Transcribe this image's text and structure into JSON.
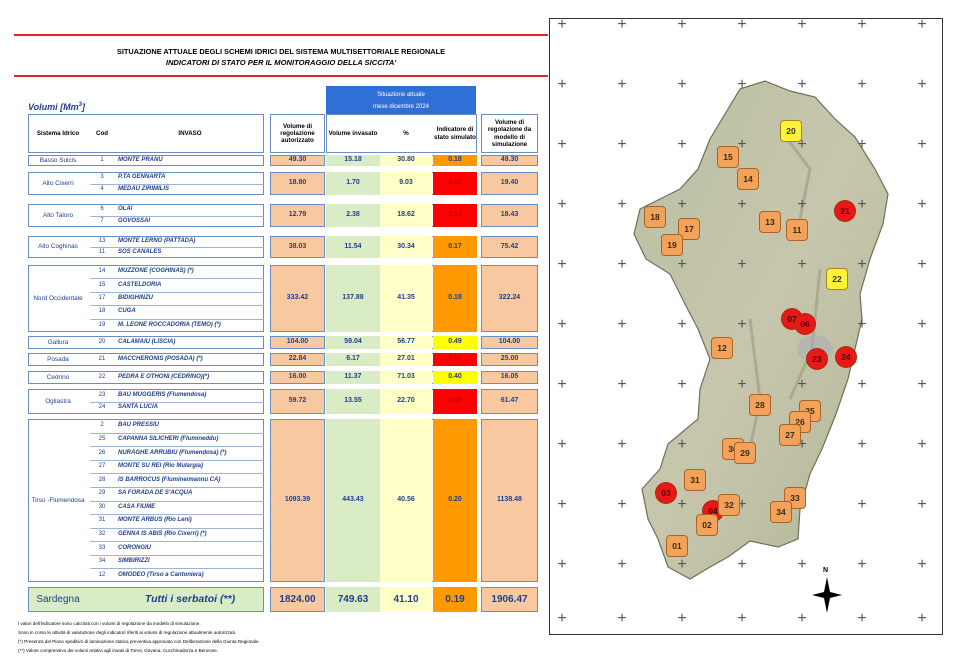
{
  "header": {
    "title_line1": "SITUAZIONE ATTUALE DEGLI SCHEMI IDRICI DEL SISTEMA MULTISETTORIALE REGIONALE",
    "title_line2": "INDICATORI DI STATO PER IL MONITORAGGIO DELLA SICCITA'",
    "volumi_label": "Volumi [Mm",
    "volumi_exp": "3",
    "volumi_close": "]"
  },
  "situazione": {
    "line1": "Situazione attuale",
    "line2": "mese dicembre 2024"
  },
  "columns": {
    "sistema": "Sistema Idrico",
    "cod": "Cod",
    "invaso": "INVASO",
    "vol_reg": "Volume di regolazione autorizzato",
    "vol_inv": "Volume invasato",
    "perc": "%",
    "indicatore": "Indicatore di stato simulato",
    "vol_sim": "Volume di regolazione da modello di simulazione"
  },
  "colors": {
    "green": "#d9ecc6",
    "orange_light": "#f8c9a0",
    "yellow_light": "#ffffc8",
    "red": "#ff0000",
    "orange": "#ff9900",
    "yellow": "#ffff00",
    "blue_header": "#2f6fd6"
  },
  "groups": [
    {
      "name": "Basso Sulcis",
      "rows": [
        {
          "cod": "1",
          "invaso": "MONTE PRANU"
        }
      ],
      "vol_reg": "49.30",
      "vol_inv": "15.18",
      "perc": "30.80",
      "ind": "0.18",
      "ind_color": "orange",
      "vol_sim": "49.30"
    },
    {
      "name": "Alto Cixerri",
      "rows": [
        {
          "cod": "3",
          "invaso": "P.TA GENNARTA"
        },
        {
          "cod": "4",
          "invaso": "MEDAU ZIRIMILIS"
        }
      ],
      "vol_reg": "18.80",
      "vol_inv": "1.70",
      "perc": "9.03",
      "ind": "0.01",
      "ind_color": "red",
      "vol_sim": "19.40"
    },
    {
      "name": "Alto Taloro",
      "rows": [
        {
          "cod": "6",
          "invaso": "OLAI"
        },
        {
          "cod": "7",
          "invaso": "GOVOSSAI"
        }
      ],
      "vol_reg": "12.79",
      "vol_inv": "2.38",
      "perc": "18.62",
      "ind": "0.13",
      "ind_color": "red",
      "vol_sim": "18.43"
    },
    {
      "name": "Alto Coghinas",
      "rows": [
        {
          "cod": "13",
          "invaso": "MONTE LERNO (PATTADA)"
        },
        {
          "cod": "11",
          "invaso": "SOS CANALES"
        }
      ],
      "vol_reg": "38.03",
      "vol_inv": "11.54",
      "perc": "30.34",
      "ind": "0.17",
      "ind_color": "orange",
      "vol_sim": "75.42"
    },
    {
      "name": "Nord Occidentale",
      "rows": [
        {
          "cod": "14",
          "invaso": "MUZZONE (COGHINAS) (*)"
        },
        {
          "cod": "15",
          "invaso": "CASTELDORIA"
        },
        {
          "cod": "17",
          "invaso": "BIDIGHINZU"
        },
        {
          "cod": "18",
          "invaso": "CUGA"
        },
        {
          "cod": "19",
          "invaso": "M. LEONE ROCCADORIA (TEMO) (*)"
        }
      ],
      "vol_reg": "333.42",
      "vol_inv": "137.88",
      "perc": "41.35",
      "ind": "0.18",
      "ind_color": "orange",
      "vol_sim": "322.24"
    },
    {
      "name": "Gallura",
      "rows": [
        {
          "cod": "20",
          "invaso": "CALAMAIU (LISCIA)"
        }
      ],
      "vol_reg": "104.00",
      "vol_inv": "59.04",
      "perc": "56.77",
      "ind": "0.49",
      "ind_color": "yellow",
      "vol_sim": "104.00"
    },
    {
      "name": "Posada",
      "rows": [
        {
          "cod": "21",
          "invaso": "MACCHERONIS (POSADA) (*)"
        }
      ],
      "vol_reg": "22.84",
      "vol_inv": "6.17",
      "perc": "27.01",
      "ind": "0.01",
      "ind_color": "red",
      "vol_sim": "25.00"
    },
    {
      "name": "Cedrino",
      "rows": [
        {
          "cod": "22",
          "invaso": "PEDRA E OTHONI (CEDRINO)(*)"
        }
      ],
      "vol_reg": "16.00",
      "vol_inv": "11.37",
      "perc": "71.03",
      "ind": "0.40",
      "ind_color": "yellow",
      "vol_sim": "16.05"
    },
    {
      "name": "Ogliastra",
      "rows": [
        {
          "cod": "23",
          "invaso": "BAU MUGGERIS (Flumendosa)"
        },
        {
          "cod": "24",
          "invaso": "SANTA LUCIA"
        }
      ],
      "vol_reg": "59.72",
      "vol_inv": "13.55",
      "perc": "22.70",
      "ind": "0.08",
      "ind_color": "red",
      "vol_sim": "61.47"
    },
    {
      "name": "Tirso -Flumendosa",
      "rows": [
        {
          "cod": "2",
          "invaso": "BAU PRESSIU"
        },
        {
          "cod": "25",
          "invaso": "CAPANNA SILICHERI (Flumineddu)"
        },
        {
          "cod": "26",
          "invaso": "NURAGHE ARRUBIU (Flumendosa) (*)"
        },
        {
          "cod": "27",
          "invaso": "MONTE SU REI (Rio Mulargia)"
        },
        {
          "cod": "28",
          "invaso": "IS BARROCUS (Flumineimannu CA)"
        },
        {
          "cod": "29",
          "invaso": "SA FORADA DE S'ACQUA"
        },
        {
          "cod": "30",
          "invaso": "CASA FIUME"
        },
        {
          "cod": "31",
          "invaso": "MONTE ARBUS (Rio Leni)"
        },
        {
          "cod": "32",
          "invaso": "GENNA IS ABIS (Rio Cixerri) (*)"
        },
        {
          "cod": "33",
          "invaso": "CORONGIU"
        },
        {
          "cod": "34",
          "invaso": "SIMBIRIZZI"
        },
        {
          "cod": "12",
          "invaso": "OMODEO (Tirso a Cantoniera)"
        }
      ],
      "vol_reg": "1093.39",
      "vol_inv": "443.43",
      "perc": "40.56",
      "ind": "0.20",
      "ind_color": "orange",
      "vol_sim": "1138.48"
    }
  ],
  "total": {
    "name": "Sardegna",
    "invaso": "Tutti i serbatoi (**)",
    "vol_reg": "1824.00",
    "vol_inv": "749.63",
    "perc": "41.10",
    "ind": "0.19",
    "vol_sim": "1906.47"
  },
  "footnotes": [
    "I valori dell'indicatore sono calcolati con i volumi di regolazione da modello di simulazione.",
    "Sono in corso le attività di valutazione degli indicatori riferiti ai volumi di regolazione attualmente autorizzati.",
    "(*) Presenza del Piano speditivo di laminazione statica preventiva  approvato con Deliberazione della Giunta Regionale.",
    "(**) Valore comprensivo dei volumi relativi agli invasi di Torrei, Govana, Cucchinadorza e Benzone."
  ],
  "map": {
    "north_label": "N",
    "markers": [
      {
        "id": "20",
        "color": "yellow"
      },
      {
        "id": "15",
        "color": "orange"
      },
      {
        "id": "14",
        "color": "orange"
      },
      {
        "id": "21",
        "color": "red"
      },
      {
        "id": "18",
        "color": "orange"
      },
      {
        "id": "17",
        "color": "orange"
      },
      {
        "id": "13",
        "color": "orange"
      },
      {
        "id": "11",
        "color": "orange"
      },
      {
        "id": "19",
        "color": "orange"
      },
      {
        "id": "22",
        "color": "yellow"
      },
      {
        "id": "07",
        "color": "red"
      },
      {
        "id": "06",
        "color": "red"
      },
      {
        "id": "12",
        "color": "orange"
      },
      {
        "id": "23",
        "color": "red"
      },
      {
        "id": "24",
        "color": "red"
      },
      {
        "id": "28",
        "color": "orange"
      },
      {
        "id": "25",
        "color": "orange"
      },
      {
        "id": "26",
        "color": "orange"
      },
      {
        "id": "27",
        "color": "orange"
      },
      {
        "id": "30",
        "color": "orange"
      },
      {
        "id": "29",
        "color": "orange"
      },
      {
        "id": "31",
        "color": "orange"
      },
      {
        "id": "03",
        "color": "red"
      },
      {
        "id": "33",
        "color": "orange"
      },
      {
        "id": "04",
        "color": "red"
      },
      {
        "id": "32",
        "color": "orange"
      },
      {
        "id": "34",
        "color": "orange"
      },
      {
        "id": "02",
        "color": "orange"
      },
      {
        "id": "01",
        "color": "orange"
      }
    ]
  }
}
